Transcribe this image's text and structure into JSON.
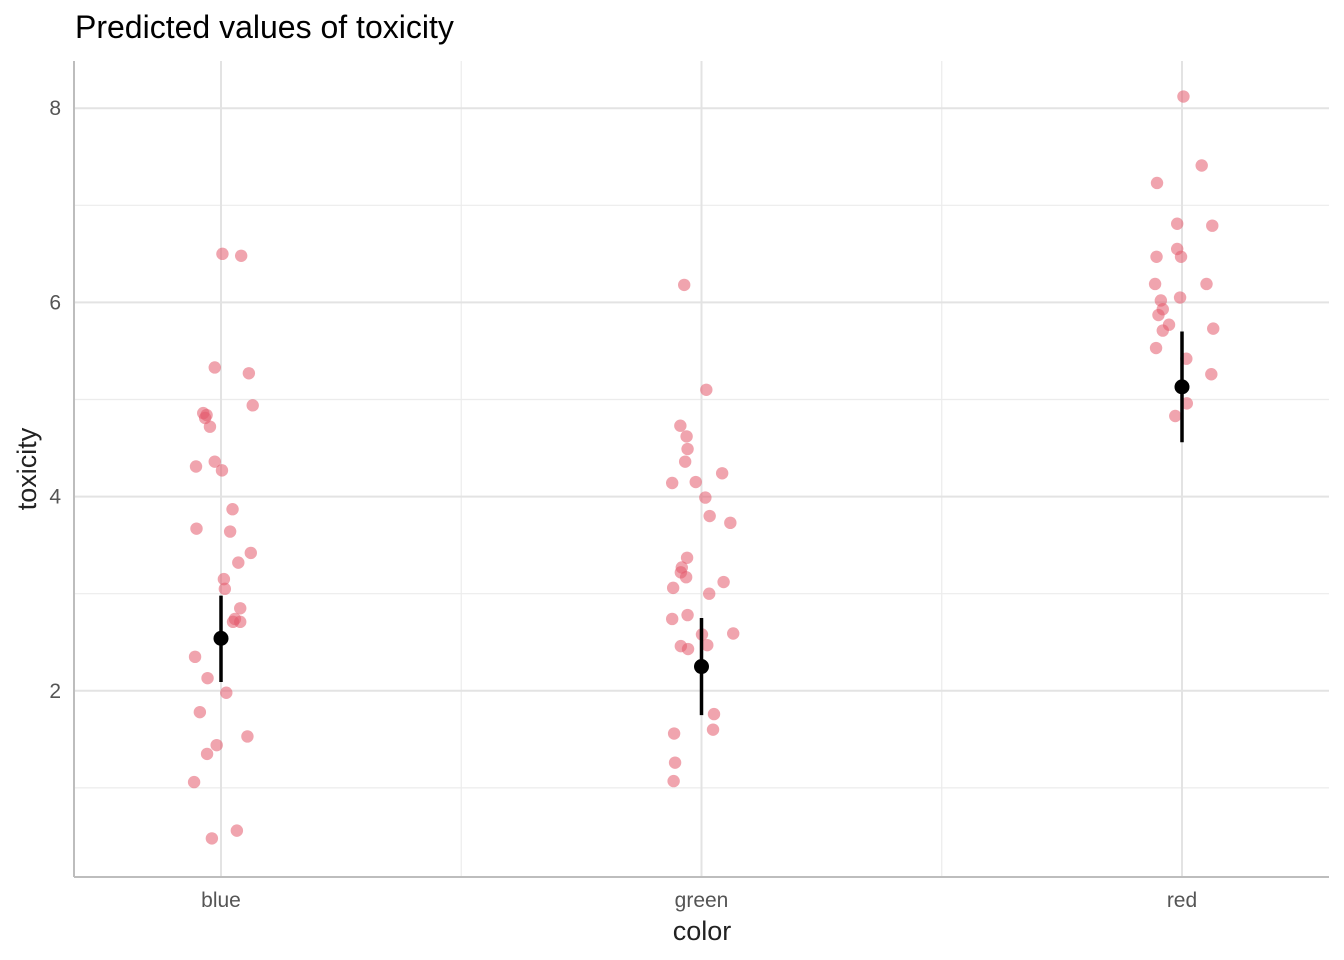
{
  "chart_data": {
    "type": "scatter",
    "title": "Predicted values of toxicity",
    "xlabel": "color",
    "ylabel": "toxicity",
    "categories": [
      "blue",
      "green",
      "red"
    ],
    "ylim": [
      0.34,
      8.5
    ],
    "yticks": [
      2,
      4,
      6,
      8
    ],
    "yticks_minor": [
      1,
      3,
      5,
      7
    ],
    "grid": true,
    "legend": "none",
    "point_color": "#e4596c",
    "estimate_color": "#000000",
    "predictions": [
      {
        "category": "blue",
        "predicted": 2.54,
        "ci_low": 2.09,
        "ci_high": 2.98
      },
      {
        "category": "green",
        "predicted": 2.25,
        "ci_low": 1.75,
        "ci_high": 2.75
      },
      {
        "category": "red",
        "predicted": 5.13,
        "ci_low": 4.56,
        "ci_high": 5.7
      }
    ],
    "raw_points": [
      {
        "category": "blue",
        "jitter": [
          0.003,
          0.042,
          -0.013,
          0.058,
          0.066,
          -0.037,
          -0.03,
          -0.033,
          -0.023,
          -0.052,
          -0.013,
          0.002,
          0.024,
          -0.051,
          0.019,
          0.062,
          0.036,
          0.006,
          0.008,
          0.04,
          0.029,
          0.04,
          0.025,
          -0.054,
          -0.028,
          0.011,
          -0.044,
          -0.009,
          0.055,
          -0.029,
          -0.056,
          0.033,
          -0.019
        ],
        "values": [
          6.5,
          6.48,
          5.33,
          5.27,
          4.94,
          4.86,
          4.84,
          4.81,
          4.72,
          4.31,
          4.36,
          4.27,
          3.87,
          3.67,
          3.64,
          3.42,
          3.32,
          3.15,
          3.05,
          2.85,
          2.74,
          2.71,
          2.71,
          2.35,
          2.13,
          1.98,
          1.78,
          1.44,
          1.53,
          1.35,
          1.06,
          0.56,
          0.48
        ]
      },
      {
        "category": "green",
        "jitter": [
          -0.036,
          0.01,
          -0.044,
          -0.031,
          -0.029,
          -0.034,
          -0.061,
          -0.012,
          0.008,
          0.043,
          0.017,
          0.06,
          -0.03,
          -0.041,
          -0.043,
          -0.032,
          -0.059,
          0.046,
          0.016,
          -0.029,
          -0.061,
          0.001,
          0.012,
          0.066,
          -0.043,
          -0.028,
          0.026,
          0.024,
          -0.057,
          -0.055,
          -0.058
        ],
        "values": [
          6.18,
          5.1,
          4.73,
          4.62,
          4.49,
          4.36,
          4.14,
          4.15,
          3.99,
          4.24,
          3.8,
          3.73,
          3.37,
          3.27,
          3.22,
          3.17,
          3.06,
          3.12,
          3.0,
          2.78,
          2.74,
          2.58,
          2.47,
          2.59,
          2.46,
          2.43,
          1.76,
          1.6,
          1.56,
          1.26,
          1.07
        ]
      },
      {
        "category": "red",
        "jitter": [
          0.003,
          0.041,
          -0.052,
          -0.01,
          0.063,
          -0.01,
          -0.053,
          -0.002,
          -0.056,
          0.051,
          -0.044,
          -0.004,
          -0.04,
          -0.049,
          -0.027,
          -0.04,
          0.065,
          -0.054,
          0.009,
          0.061,
          0.01,
          -0.014
        ],
        "values": [
          8.12,
          7.41,
          7.23,
          6.81,
          6.79,
          6.55,
          6.47,
          6.47,
          6.19,
          6.19,
          6.02,
          6.05,
          5.93,
          5.87,
          5.77,
          5.71,
          5.73,
          5.53,
          5.42,
          5.26,
          4.96,
          4.83
        ]
      }
    ]
  }
}
